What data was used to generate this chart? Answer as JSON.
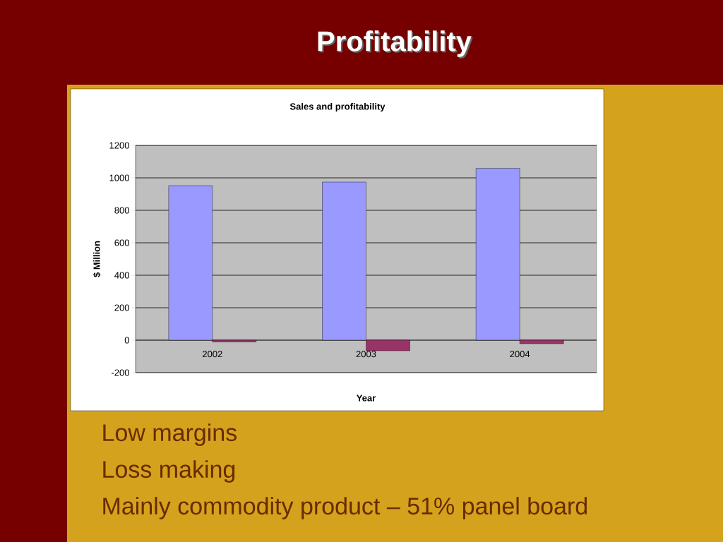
{
  "chart_data": {
    "type": "bar",
    "title": "Profitability",
    "subtitle": "Sales and profitability",
    "xlabel": "Year",
    "ylabel": "$ Million",
    "categories": [
      "2002",
      "2003",
      "2004"
    ],
    "series": [
      {
        "color": "#9999ff",
        "values": [
          952,
          974,
          1059
        ]
      },
      {
        "color": "#993366",
        "values": [
          -11,
          -65,
          -22
        ]
      }
    ],
    "ylim": [
      -200,
      1200
    ],
    "yticks": [
      -200,
      0,
      200,
      400,
      600,
      800,
      1000,
      1200
    ],
    "grid": "y",
    "annotations": [
      "Low margins",
      "Loss making",
      "Mainly commodity product – 51% panel board"
    ]
  }
}
